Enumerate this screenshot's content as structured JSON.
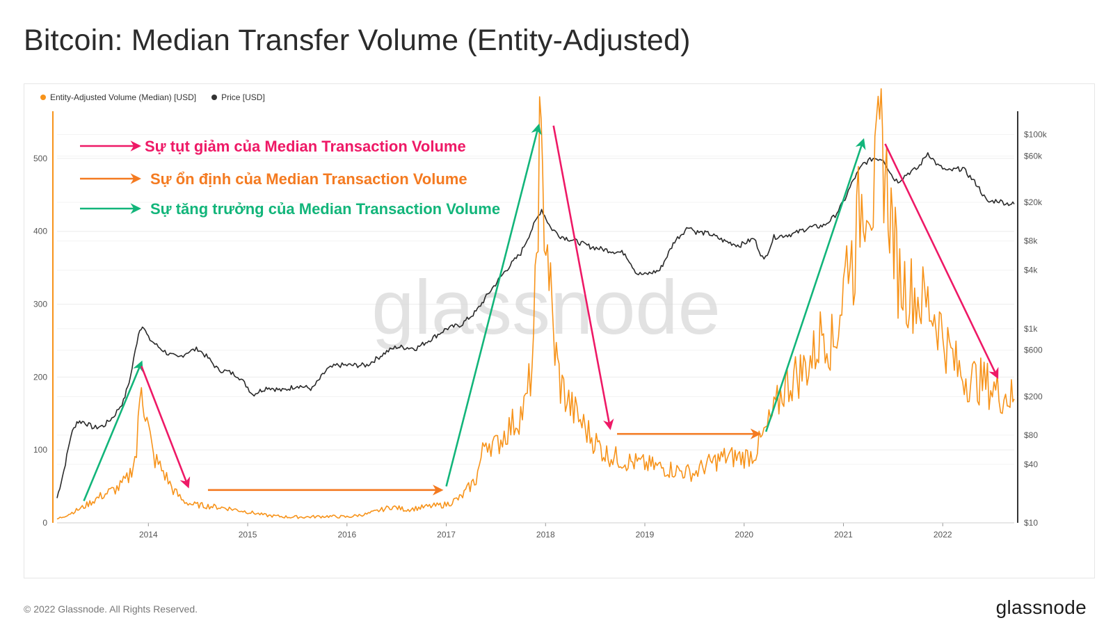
{
  "header": {
    "title": "Bitcoin: Median Transfer Volume (Entity-Adjusted)"
  },
  "legend": {
    "items": [
      {
        "label": "Entity-Adjusted Volume (Median) [USD]",
        "color": "#f7931a"
      },
      {
        "label": "Price [USD]",
        "color": "#333333"
      }
    ]
  },
  "footer": {
    "copyright": "© 2022 Glassnode. All Rights Reserved.",
    "brand": "glassnode"
  },
  "watermark": "glassnode",
  "colors": {
    "volume": "#f7931a",
    "price": "#2a2a2a",
    "decline": "#ee1966",
    "stable": "#f47a20",
    "growth": "#12b57a"
  },
  "chart_data": {
    "type": "line",
    "x_ticks": [
      "2014",
      "2015",
      "2016",
      "2017",
      "2018",
      "2019",
      "2020",
      "2021",
      "2022"
    ],
    "x_range": [
      2013.08,
      2022.72
    ],
    "y_left": {
      "ticks": [
        0,
        100,
        200,
        300,
        400,
        500
      ],
      "range": [
        0,
        560
      ]
    },
    "y_right": {
      "scale": "log",
      "ticks": [
        10,
        40,
        80,
        200,
        600,
        1000,
        4000,
        8000,
        20000,
        60000,
        100000
      ],
      "tick_labels": [
        "$10",
        "$40",
        "$80",
        "$200",
        "$600",
        "$1k",
        "$4k",
        "$8k",
        "$20k",
        "$60k",
        "$100k"
      ],
      "range": [
        10,
        160000
      ]
    },
    "series": [
      {
        "name": "Entity-Adjusted Volume (Median) [USD]",
        "axis": "left",
        "x": [
          2013.08,
          2013.2,
          2013.35,
          2013.5,
          2013.6,
          2013.7,
          2013.8,
          2013.88,
          2013.93,
          2013.97,
          2014.05,
          2014.15,
          2014.25,
          2014.35,
          2014.45,
          2014.6,
          2014.8,
          2015.0,
          2015.2,
          2015.4,
          2015.6,
          2015.8,
          2016.0,
          2016.2,
          2016.35,
          2016.45,
          2016.6,
          2016.8,
          2017.0,
          2017.15,
          2017.3,
          2017.4,
          2017.5,
          2017.6,
          2017.7,
          2017.8,
          2017.88,
          2017.94,
          2017.97,
          2018.02,
          2018.08,
          2018.15,
          2018.25,
          2018.35,
          2018.45,
          2018.6,
          2018.8,
          2019.0,
          2019.2,
          2019.4,
          2019.5,
          2019.6,
          2019.8,
          2020.0,
          2020.1,
          2020.2,
          2020.3,
          2020.4,
          2020.5,
          2020.6,
          2020.7,
          2020.8,
          2020.9,
          2021.0,
          2021.05,
          2021.1,
          2021.15,
          2021.2,
          2021.25,
          2021.3,
          2021.35,
          2021.38,
          2021.42,
          2021.48,
          2021.55,
          2021.65,
          2021.75,
          2021.85,
          2021.95,
          2022.05,
          2022.15,
          2022.25,
          2022.35,
          2022.45,
          2022.55,
          2022.65,
          2022.72
        ],
        "y": [
          5,
          12,
          22,
          35,
          42,
          48,
          62,
          95,
          200,
          150,
          90,
          70,
          45,
          30,
          25,
          23,
          20,
          15,
          10,
          8,
          8,
          9,
          8,
          12,
          18,
          22,
          18,
          22,
          25,
          35,
          60,
          115,
          105,
          125,
          140,
          160,
          230,
          520,
          450,
          380,
          250,
          190,
          160,
          140,
          120,
          95,
          85,
          80,
          75,
          70,
          68,
          78,
          90,
          90,
          95,
          120,
          150,
          185,
          200,
          210,
          230,
          270,
          240,
          320,
          380,
          350,
          420,
          450,
          470,
          440,
          500,
          520,
          480,
          420,
          340,
          320,
          310,
          300,
          280,
          240,
          210,
          200,
          195,
          190,
          180,
          175,
          170
        ]
      },
      {
        "name": "Price [USD]",
        "axis": "right",
        "x": [
          2013.08,
          2013.15,
          2013.22,
          2013.28,
          2013.35,
          2013.45,
          2013.55,
          2013.65,
          2013.75,
          2013.82,
          2013.9,
          2013.94,
          2014.0,
          2014.1,
          2014.2,
          2014.3,
          2014.4,
          2014.5,
          2014.6,
          2014.7,
          2014.8,
          2014.9,
          2015.0,
          2015.05,
          2015.2,
          2015.35,
          2015.5,
          2015.65,
          2015.8,
          2015.9,
          2016.0,
          2016.2,
          2016.4,
          2016.5,
          2016.7,
          2016.9,
          2017.0,
          2017.15,
          2017.3,
          2017.45,
          2017.6,
          2017.75,
          2017.85,
          2017.96,
          2018.05,
          2018.15,
          2018.3,
          2018.45,
          2018.6,
          2018.8,
          2018.92,
          2019.0,
          2019.15,
          2019.3,
          2019.45,
          2019.5,
          2019.65,
          2019.8,
          2019.95,
          2020.1,
          2020.2,
          2020.3,
          2020.5,
          2020.65,
          2020.8,
          2020.9,
          2021.0,
          2021.1,
          2021.2,
          2021.3,
          2021.4,
          2021.5,
          2021.55,
          2021.65,
          2021.75,
          2021.85,
          2021.95,
          2022.05,
          2022.2,
          2022.35,
          2022.45,
          2022.55,
          2022.65,
          2022.72
        ],
        "y": [
          18,
          35,
          80,
          110,
          110,
          95,
          100,
          125,
          180,
          320,
          900,
          1100,
          800,
          650,
          550,
          500,
          580,
          620,
          500,
          380,
          360,
          330,
          250,
          210,
          250,
          230,
          260,
          240,
          380,
          420,
          420,
          420,
          580,
          650,
          630,
          850,
          1000,
          1100,
          1500,
          2500,
          4000,
          6000,
          10000,
          17000,
          11000,
          9000,
          8000,
          7000,
          6500,
          6000,
          3700,
          3600,
          4000,
          8000,
          11500,
          10000,
          9500,
          8000,
          7200,
          8500,
          5000,
          8800,
          9500,
          11000,
          11500,
          14000,
          20000,
          34000,
          50000,
          57000,
          56000,
          36000,
          33000,
          40000,
          45000,
          65000,
          48000,
          42000,
          45000,
          30000,
          20000,
          21000,
          19500,
          19200
        ]
      }
    ]
  },
  "annotations": {
    "legend_lines": [
      {
        "text": "Sự tụt giảm của Median Transaction Volume",
        "kind": "decline"
      },
      {
        "text": "Sự ổn định của Median Transaction Volume",
        "kind": "stable"
      },
      {
        "text": "Sự tăng trưởng của Median Transaction Volume",
        "kind": "growth"
      }
    ],
    "arrows": [
      {
        "kind": "growth",
        "from": [
          2013.35,
          30
        ],
        "to": [
          2013.93,
          220
        ]
      },
      {
        "kind": "decline",
        "from": [
          2013.93,
          215
        ],
        "to": [
          2014.4,
          50
        ]
      },
      {
        "kind": "stable",
        "from": [
          2014.6,
          45
        ],
        "to": [
          2016.95,
          45
        ]
      },
      {
        "kind": "growth",
        "from": [
          2017.0,
          50
        ],
        "to": [
          2017.93,
          545
        ]
      },
      {
        "kind": "decline",
        "from": [
          2018.08,
          545
        ],
        "to": [
          2018.65,
          130
        ]
      },
      {
        "kind": "stable",
        "from": [
          2018.72,
          122
        ],
        "to": [
          2020.15,
          122
        ]
      },
      {
        "kind": "growth",
        "from": [
          2020.22,
          125
        ],
        "to": [
          2021.2,
          525
        ]
      },
      {
        "kind": "decline",
        "from": [
          2021.42,
          520
        ],
        "to": [
          2022.55,
          200
        ]
      }
    ]
  }
}
